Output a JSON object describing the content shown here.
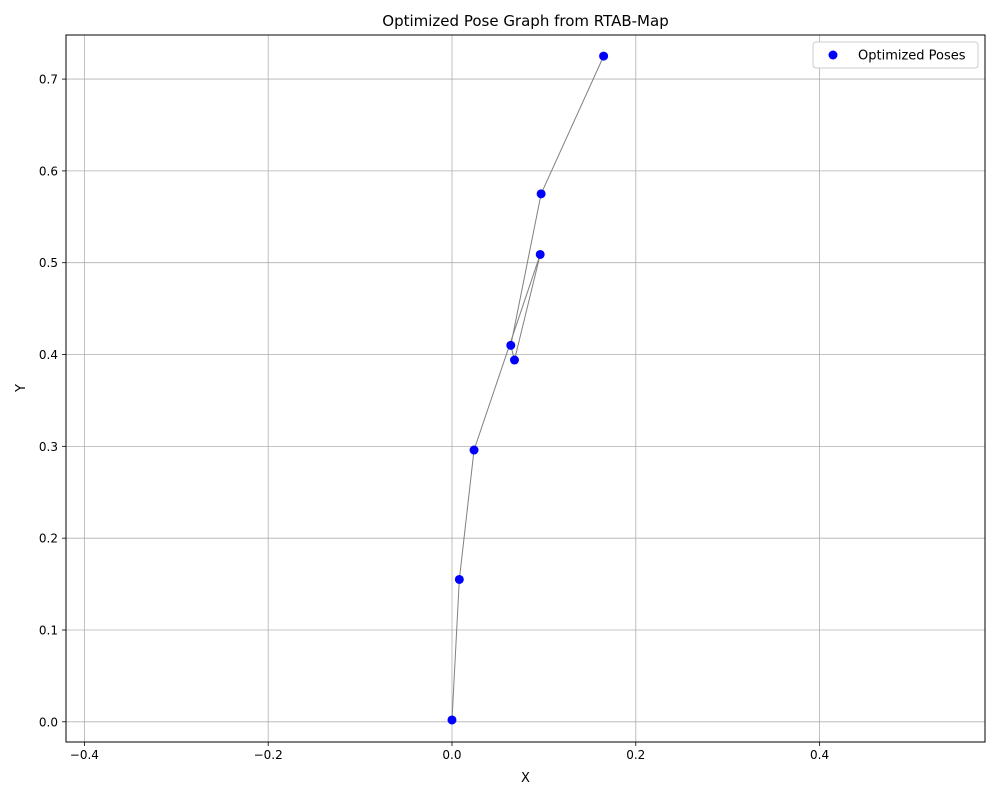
{
  "chart_data": {
    "type": "scatter",
    "title": "Optimized Pose Graph from RTAB-Map",
    "xlabel": "X",
    "ylabel": "Y",
    "xlim": [
      -0.42,
      0.58
    ],
    "ylim": [
      -0.022,
      0.748
    ],
    "xticks": [
      -0.4,
      -0.2,
      0.0,
      0.2,
      0.4
    ],
    "xtick_labels": [
      "−0.4",
      "−0.2",
      "0.0",
      "0.2",
      "0.4"
    ],
    "yticks": [
      0.0,
      0.1,
      0.2,
      0.3,
      0.4,
      0.5,
      0.6,
      0.7
    ],
    "ytick_labels": [
      "0.0",
      "0.1",
      "0.2",
      "0.3",
      "0.4",
      "0.5",
      "0.6",
      "0.7"
    ],
    "grid": true,
    "legend_position": "top-right",
    "series": [
      {
        "name": "Optimized Poses",
        "color": "#0000ff",
        "line_color": "#808080",
        "connected": true,
        "points": [
          {
            "x": 0.0,
            "y": 0.002
          },
          {
            "x": 0.008,
            "y": 0.155
          },
          {
            "x": 0.024,
            "y": 0.296
          },
          {
            "x": 0.096,
            "y": 0.509
          },
          {
            "x": 0.068,
            "y": 0.394
          },
          {
            "x": 0.064,
            "y": 0.41
          },
          {
            "x": 0.097,
            "y": 0.575
          },
          {
            "x": 0.165,
            "y": 0.725
          }
        ]
      }
    ]
  }
}
